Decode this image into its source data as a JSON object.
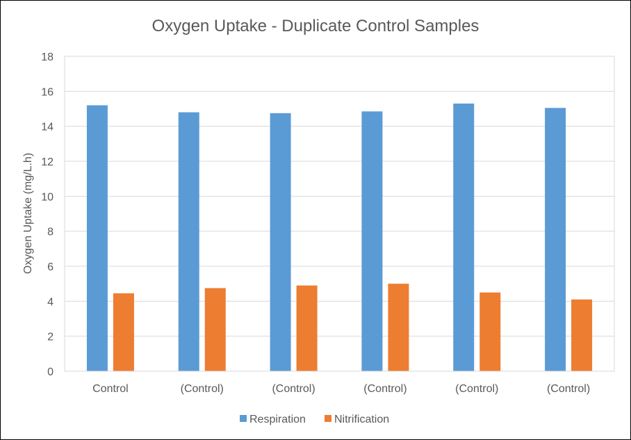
{
  "chart_data": {
    "type": "bar",
    "title": "Oxygen Uptake - Duplicate Control Samples",
    "xlabel": "",
    "ylabel": "Oxygen Uptake (mg/L.h)",
    "categories": [
      "Control",
      "(Control)",
      "(Control)",
      "(Control)",
      "(Control)",
      "(Control)"
    ],
    "series": [
      {
        "name": "Respiration",
        "color": "#5b9bd5",
        "values": [
          15.2,
          14.8,
          14.75,
          14.85,
          15.3,
          15.05
        ]
      },
      {
        "name": "Nitrification",
        "color": "#ed7d31",
        "values": [
          4.45,
          4.75,
          4.9,
          5.0,
          4.5,
          4.1
        ]
      }
    ],
    "ylim": [
      0,
      18
    ],
    "yticks": [
      0,
      2,
      4,
      6,
      8,
      10,
      12,
      14,
      16,
      18
    ],
    "grid": true,
    "legend": "bottom"
  }
}
